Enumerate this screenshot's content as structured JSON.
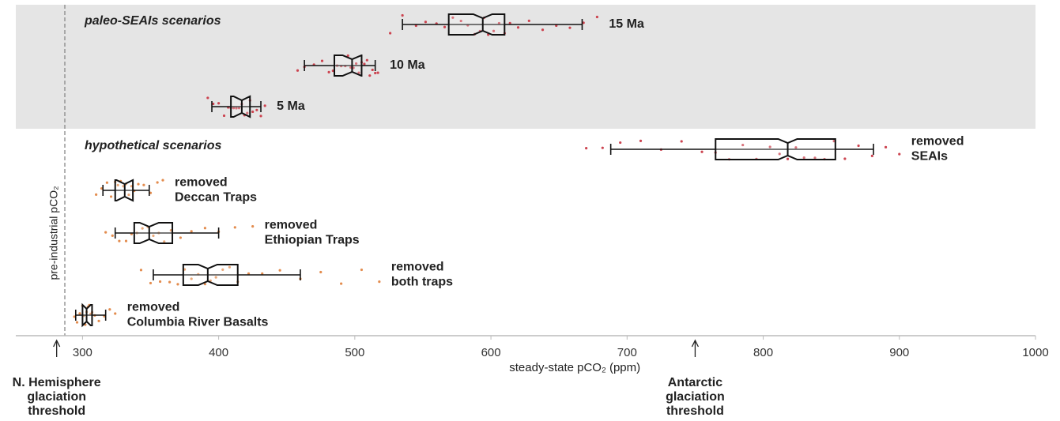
{
  "chart_data": {
    "type": "boxplot",
    "xlabel": "steady-state pCO₂ (ppm)",
    "xlim": [
      251,
      1000
    ],
    "xticks": [
      300,
      400,
      500,
      600,
      700,
      800,
      900,
      1000
    ],
    "reference_line": {
      "label": "pre-industrial pCO₂",
      "x": 287
    },
    "markers": [
      {
        "label": [
          "N. Hemisphere",
          "glaciation",
          "threshold"
        ],
        "x": 281
      },
      {
        "label": [
          "Antarctic",
          "glaciation",
          "threshold"
        ],
        "x": 750
      }
    ],
    "panels": [
      {
        "title": "paleo-SEAIs scenarios",
        "background": "#e5e5e5",
        "groups": [
          {
            "label": [
              "15 Ma"
            ],
            "color": "#cc4450",
            "whislo": 535,
            "q1": 569,
            "med": 594,
            "q3": 610,
            "whishi": 667,
            "points": [
              526,
              535,
              545,
              552,
              560,
              566,
              572,
              578,
              583,
              588,
              592,
              595,
              598,
              602,
              606,
              610,
              614,
              620,
              628,
              638,
              648,
              658,
              668,
              678
            ]
          },
          {
            "label": [
              "10 Ma"
            ],
            "color": "#cc4450",
            "whislo": 463,
            "q1": 485,
            "med": 498,
            "q3": 505,
            "whishi": 515,
            "points": [
              458,
              463,
              470,
              476,
              481,
              484,
              487,
              490,
              493,
              495,
              497,
              499,
              501,
              503,
              505,
              507,
              509,
              511,
              513,
              515,
              517
            ]
          },
          {
            "label": [
              "5 Ma"
            ],
            "color": "#cc4450",
            "whislo": 395,
            "q1": 409,
            "med": 417,
            "q3": 423,
            "whishi": 431,
            "points": [
              392,
              396,
              400,
              404,
              407,
              409,
              411,
              413,
              415,
              417,
              419,
              421,
              423,
              425,
              428,
              431,
              434
            ]
          }
        ]
      },
      {
        "title": "hypothetical scenarios",
        "background": "#ffffff",
        "groups": [
          {
            "label": [
              "removed",
              "SEAIs"
            ],
            "color": "#cc4450",
            "whislo": 688,
            "q1": 765,
            "med": 818,
            "q3": 853,
            "whishi": 881,
            "points": [
              670,
              682,
              695,
              710,
              725,
              740,
              755,
              765,
              775,
              785,
              795,
              805,
              812,
              818,
              824,
              830,
              838,
              845,
              852,
              860,
              870,
              880,
              890,
              900
            ]
          },
          {
            "label": [
              "removed",
              "Deccan Traps"
            ],
            "color": "#e38c4e",
            "whislo": 315,
            "q1": 324,
            "med": 331,
            "q3": 337,
            "whishi": 349,
            "points": [
              310,
              314,
              318,
              321,
              324,
              326,
              328,
              330,
              332,
              334,
              336,
              338,
              341,
              345,
              350,
              355,
              359
            ]
          },
          {
            "label": [
              "removed",
              "Ethiopian Traps"
            ],
            "color": "#e38c4e",
            "whislo": 324,
            "q1": 338,
            "med": 349,
            "q3": 366,
            "whishi": 400,
            "points": [
              317,
              322,
              327,
              332,
              336,
              340,
              344,
              348,
              352,
              356,
              360,
              365,
              372,
              380,
              390,
              400,
              412,
              425
            ]
          },
          {
            "label": [
              "removed",
              "both traps"
            ],
            "color": "#e38c4e",
            "whislo": 352,
            "q1": 374,
            "med": 392,
            "q3": 414,
            "whishi": 460,
            "points": [
              343,
              350,
              357,
              364,
              370,
              375,
              380,
              385,
              390,
              394,
              398,
              403,
              408,
              414,
              422,
              432,
              445,
              460,
              475,
              490,
              505,
              518
            ]
          },
          {
            "label": [
              "removed",
              "Columbia River Basalts"
            ],
            "color": "#e38c4e",
            "whislo": 295,
            "q1": 300,
            "med": 303,
            "q3": 307,
            "whishi": 317,
            "points": [
              294,
              296,
              298,
              300,
              301,
              302,
              303,
              304,
              305,
              306,
              307,
              309,
              312,
              316,
              320,
              324
            ]
          }
        ]
      }
    ]
  }
}
